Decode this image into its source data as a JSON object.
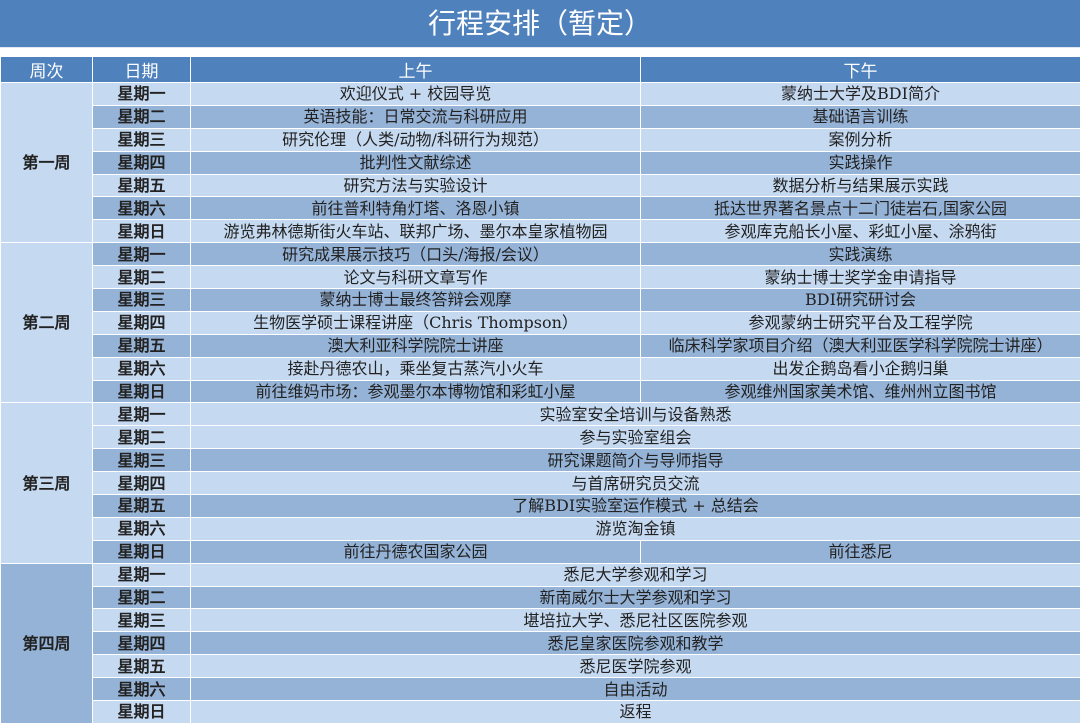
{
  "title": "行程安排（暂定）",
  "headers": {
    "week": "周次",
    "date": "日期",
    "am": "上午",
    "pm": "下午"
  },
  "colors": {
    "header": "#4F81BD",
    "light": "#C5D9F1",
    "dark": "#95B3D7"
  },
  "weeks": [
    {
      "label": "第一周",
      "shade": "light",
      "days": [
        {
          "day": "星期一",
          "am": "欢迎仪式 + 校园导览",
          "pm": "蒙纳士大学及BDI简介",
          "shade": "light"
        },
        {
          "day": "星期二",
          "am": "英语技能：日常交流与科研应用",
          "pm": "基础语言训练",
          "shade": "dark"
        },
        {
          "day": "星期三",
          "am": "研究伦理（人类/动物/科研行为规范）",
          "pm": "案例分析",
          "shade": "light"
        },
        {
          "day": "星期四",
          "am": "批判性文献综述",
          "pm": "实践操作",
          "shade": "dark"
        },
        {
          "day": "星期五",
          "am": "研究方法与实验设计",
          "pm": "数据分析与结果展示实践",
          "shade": "light"
        },
        {
          "day": "星期六",
          "am": "前往普利特角灯塔、洛恩小镇",
          "pm": "抵达世界著名景点十二门徒岩石,国家公园",
          "shade": "dark"
        },
        {
          "day": "星期日",
          "am": "游览弗林德斯街火车站、联邦广场、墨尔本皇家植物园",
          "pm": "参观库克船长小屋、彩虹小屋、涂鸦街",
          "shade": "light"
        }
      ]
    },
    {
      "label": "第二周",
      "shade": "light",
      "days": [
        {
          "day": "星期一",
          "am": "研究成果展示技巧（口头/海报/会议）",
          "pm": "实践演练",
          "shade": "dark"
        },
        {
          "day": "星期二",
          "am": "论文与科研文章写作",
          "pm": "蒙纳士博士奖学金申请指导",
          "shade": "light"
        },
        {
          "day": "星期三",
          "am": "蒙纳士博士最终答辩会观摩",
          "pm": "BDI研究研讨会",
          "shade": "dark"
        },
        {
          "day": "星期四",
          "am": "生物医学硕士课程讲座（Chris Thompson）",
          "pm": "参观蒙纳士研究平台及工程学院",
          "shade": "light"
        },
        {
          "day": "星期五",
          "am": "澳大利亚科学院院士讲座",
          "pm": "临床科学家项目介绍（澳大利亚医学科学院院士讲座）",
          "shade": "dark"
        },
        {
          "day": "星期六",
          "am": "接赴丹德农山，乘坐复古蒸汽小火车",
          "pm": "出发企鹅岛看小企鹅归巢",
          "shade": "light"
        },
        {
          "day": "星期日",
          "am": "前往维妈市场：参观墨尔本博物馆和彩虹小屋",
          "pm": "参观维州国家美术馆、维州州立图书馆",
          "shade": "dark"
        }
      ]
    },
    {
      "label": "第三周",
      "shade": "light",
      "days": [
        {
          "day": "星期一",
          "all": "实验室安全培训与设备熟悉",
          "shade": "light"
        },
        {
          "day": "星期二",
          "all": "参与实验室组会",
          "shade": "light"
        },
        {
          "day": "星期三",
          "all": "研究课题简介与导师指导",
          "shade": "dark"
        },
        {
          "day": "星期四",
          "all": "与首席研究员交流",
          "shade": "light"
        },
        {
          "day": "星期五",
          "all": "了解BDI实验室运作模式 + 总结会",
          "shade": "dark"
        },
        {
          "day": "星期六",
          "all": "游览淘金镇",
          "shade": "light"
        },
        {
          "day": "星期日",
          "am": "前往丹德农国家公园",
          "pm": "前往悉尼",
          "shade": "dark"
        }
      ]
    },
    {
      "label": "第四周",
      "shade": "dark",
      "days": [
        {
          "day": "星期一",
          "all": "悉尼大学参观和学习",
          "shade": "light"
        },
        {
          "day": "星期二",
          "all": "新南威尔士大学参观和学习",
          "shade": "dark"
        },
        {
          "day": "星期三",
          "all": "堪培拉大学、悉尼社区医院参观",
          "shade": "light"
        },
        {
          "day": "星期四",
          "all": "悉尼皇家医院参观和教学",
          "shade": "dark"
        },
        {
          "day": "星期五",
          "all": "悉尼医学院参观",
          "shade": "light"
        },
        {
          "day": "星期六",
          "all": "自由活动",
          "shade": "dark"
        },
        {
          "day": "星期日",
          "all": "返程",
          "shade": "light"
        }
      ]
    }
  ]
}
